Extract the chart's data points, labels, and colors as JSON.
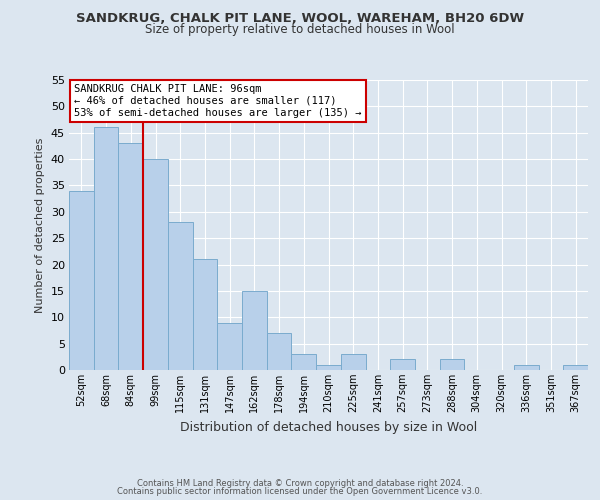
{
  "title1": "SANDKRUG, CHALK PIT LANE, WOOL, WAREHAM, BH20 6DW",
  "title2": "Size of property relative to detached houses in Wool",
  "xlabel": "Distribution of detached houses by size in Wool",
  "ylabel": "Number of detached properties",
  "bin_labels": [
    "52sqm",
    "68sqm",
    "84sqm",
    "99sqm",
    "115sqm",
    "131sqm",
    "147sqm",
    "162sqm",
    "178sqm",
    "194sqm",
    "210sqm",
    "225sqm",
    "241sqm",
    "257sqm",
    "273sqm",
    "288sqm",
    "304sqm",
    "320sqm",
    "336sqm",
    "351sqm",
    "367sqm"
  ],
  "bar_values": [
    34,
    46,
    43,
    40,
    28,
    21,
    9,
    15,
    7,
    3,
    1,
    3,
    0,
    2,
    0,
    2,
    0,
    0,
    1,
    0,
    1
  ],
  "bar_color": "#b8d0ea",
  "bar_edge_color": "#7aabce",
  "vline_color": "#cc0000",
  "ylim": [
    0,
    55
  ],
  "yticks": [
    0,
    5,
    10,
    15,
    20,
    25,
    30,
    35,
    40,
    45,
    50,
    55
  ],
  "annotation_text": "SANDKRUG CHALK PIT LANE: 96sqm\n← 46% of detached houses are smaller (117)\n53% of semi-detached houses are larger (135) →",
  "annotation_box_facecolor": "#ffffff",
  "annotation_box_edgecolor": "#cc0000",
  "footer1": "Contains HM Land Registry data © Crown copyright and database right 2024.",
  "footer2": "Contains public sector information licensed under the Open Government Licence v3.0.",
  "bg_color": "#dce6f0",
  "plot_bg_color": "#dce6f0",
  "grid_color": "#ffffff",
  "title_color": "#333333",
  "label_color": "#333333"
}
